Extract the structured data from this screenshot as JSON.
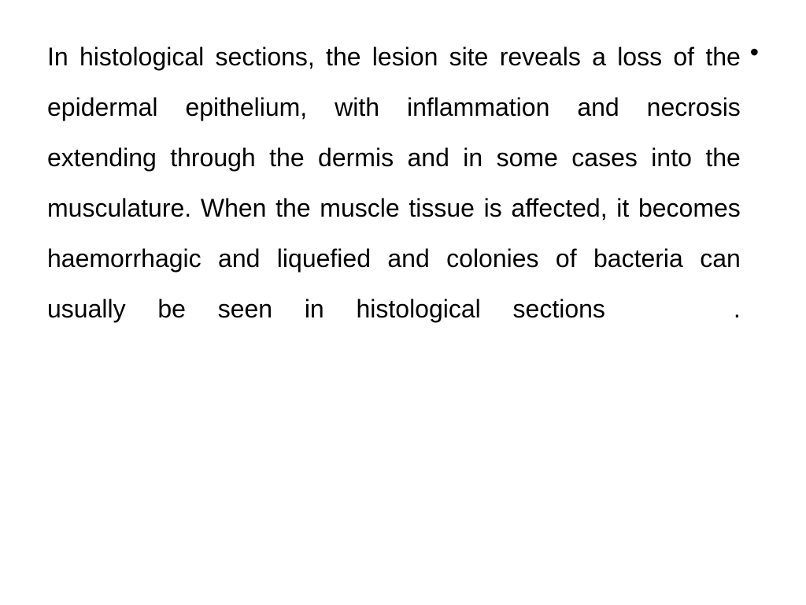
{
  "slide": {
    "bullet_symbol": "•",
    "body_text": "In histological sections, the lesion site reveals a loss of the epidermal epithelium, with inflammation and necrosis extending through the dermis and in some cases into the musculature. When the muscle tissue is affected, it becomes haemorrhagic and liquefied and colonies of bacteria can usually be seen in histological sections    .",
    "text_color": "#000000",
    "background_color": "#ffffff",
    "font_size_pt": 24,
    "line_height": 2.0,
    "font_family": "Arial"
  }
}
